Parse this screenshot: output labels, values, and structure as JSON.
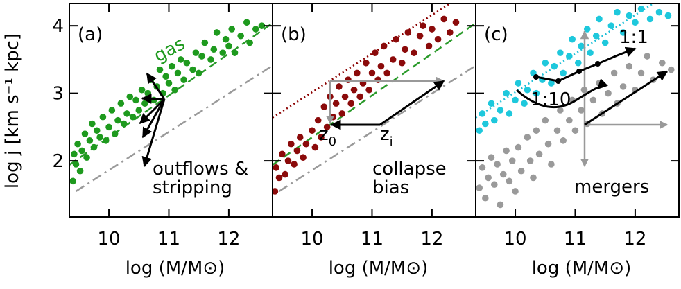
{
  "chart_data": [
    {
      "type": "scatter",
      "panel_label": "(a)",
      "ylabel": "log j [km s⁻¹ kpc]",
      "xlabel": "log (M/M⊙)",
      "xlim": [
        9.34,
        12.73
      ],
      "ylim": [
        1.17,
        4.33
      ],
      "xticks": [
        10,
        11,
        12
      ],
      "yticks": [
        2,
        3,
        4
      ],
      "ytick_labels": true,
      "annotations": [
        "gas",
        "outflows &",
        "stripping"
      ],
      "lines": [
        {
          "color": "#2a9a2a",
          "style": "dashed",
          "x": [
            9.34,
            12.73
          ],
          "values": [
            1.94,
            4.04
          ]
        },
        {
          "color": "#9a9a9a",
          "style": "dashdot",
          "x": [
            9.45,
            12.73
          ],
          "values": [
            1.55,
            3.41
          ]
        }
      ],
      "series": [
        {
          "color": "#1e9a1e",
          "x": [
            9.4,
            9.42,
            9.45,
            9.48,
            9.52,
            9.55,
            9.6,
            9.63,
            9.68,
            9.72,
            9.75,
            9.8,
            9.85,
            9.9,
            9.95,
            10.0,
            10.05,
            10.1,
            10.15,
            10.2,
            10.25,
            10.3,
            10.35,
            10.4,
            10.45,
            10.5,
            10.55,
            10.6,
            10.65,
            10.7,
            10.75,
            10.8,
            10.85,
            10.9,
            10.95,
            11.0,
            11.05,
            11.1,
            11.15,
            11.2,
            11.25,
            11.3,
            11.4,
            11.45,
            11.5,
            11.55,
            11.6,
            11.7,
            11.75,
            11.8,
            11.9,
            11.95,
            12.0,
            12.05,
            12.1,
            12.2,
            12.3,
            12.35,
            12.45,
            12.55
          ],
          "values": [
            1.7,
            2.1,
            1.95,
            2.25,
            1.85,
            2.15,
            2.4,
            2.05,
            2.3,
            2.55,
            2.2,
            2.45,
            2.35,
            2.65,
            2.3,
            2.5,
            2.75,
            2.4,
            2.6,
            2.85,
            2.55,
            2.7,
            2.95,
            2.65,
            2.9,
            2.75,
            3.05,
            2.85,
            3.0,
            3.2,
            2.9,
            3.1,
            3.35,
            3.0,
            3.25,
            3.15,
            3.4,
            3.05,
            3.3,
            3.5,
            3.2,
            3.45,
            3.35,
            3.6,
            3.3,
            3.55,
            3.75,
            3.5,
            3.65,
            3.9,
            3.6,
            3.8,
            3.7,
            3.95,
            3.6,
            3.85,
            4.05,
            3.75,
            3.95,
            4.0
          ]
        }
      ]
    },
    {
      "type": "scatter",
      "panel_label": "(b)",
      "xlabel": "log (M/M⊙)",
      "xlim": [
        9.34,
        12.73
      ],
      "ylim": [
        1.17,
        4.33
      ],
      "xticks": [
        10,
        11,
        12
      ],
      "yticks": [
        2,
        3,
        4
      ],
      "ytick_labels": false,
      "annotations": [
        "collapse",
        "bias"
      ],
      "subscripted": [
        {
          "text": "z",
          "sub": "0"
        },
        {
          "text": "z",
          "sub": "i"
        }
      ],
      "lines": [
        {
          "color": "#2a9a2a",
          "style": "dashed",
          "x": [
            9.34,
            12.73
          ],
          "values": [
            1.94,
            4.04
          ]
        },
        {
          "color": "#9a9a9a",
          "style": "dashdot",
          "x": [
            9.45,
            12.73
          ],
          "values": [
            1.55,
            3.41
          ]
        },
        {
          "color": "#8b0000",
          "style": "dotted",
          "x": [
            9.34,
            12.3
          ],
          "values": [
            2.64,
            4.33
          ]
        }
      ],
      "series": [
        {
          "color": "#8b0a0a",
          "x": [
            9.38,
            9.4,
            9.45,
            9.5,
            9.55,
            9.6,
            9.65,
            9.7,
            9.75,
            9.8,
            9.85,
            9.9,
            10.0,
            10.05,
            10.1,
            10.15,
            10.2,
            10.25,
            10.3,
            10.35,
            10.4,
            10.45,
            10.5,
            10.55,
            10.6,
            10.65,
            10.7,
            10.75,
            10.8,
            10.85,
            10.9,
            10.95,
            11.0,
            11.05,
            11.1,
            11.15,
            11.2,
            11.25,
            11.35,
            11.4,
            11.5,
            11.55,
            11.6,
            11.7,
            11.8,
            11.85,
            11.95,
            12.0,
            12.1,
            12.2,
            12.3,
            12.4
          ],
          "values": [
            1.55,
            1.9,
            1.75,
            2.1,
            1.8,
            2.0,
            2.25,
            1.95,
            2.15,
            2.35,
            2.05,
            2.25,
            2.45,
            2.2,
            2.6,
            2.35,
            2.8,
            2.5,
            2.95,
            2.65,
            2.85,
            3.1,
            2.7,
            2.95,
            3.2,
            2.85,
            3.05,
            3.3,
            2.95,
            3.15,
            3.45,
            3.05,
            3.3,
            3.6,
            3.2,
            3.4,
            3.7,
            3.3,
            3.5,
            3.8,
            3.45,
            3.65,
            3.9,
            3.6,
            3.85,
            4.0,
            3.7,
            3.95,
            3.8,
            4.1,
            3.9,
            4.05
          ]
        }
      ]
    },
    {
      "type": "scatter",
      "panel_label": "(c)",
      "xlabel": "log (M/M⊙)",
      "xlim": [
        9.34,
        12.73
      ],
      "ylim": [
        1.17,
        4.33
      ],
      "xticks": [
        10,
        11,
        12
      ],
      "yticks": [
        2,
        3,
        4
      ],
      "ytick_labels": false,
      "annotations": [
        "1:1",
        "1:10",
        "mergers"
      ],
      "lines": [
        {
          "color": "#20c0d8",
          "style": "dotted",
          "x": [
            9.34,
            12.3
          ],
          "values": [
            2.64,
            4.33
          ]
        }
      ],
      "series": [
        {
          "color": "#9a9a9a",
          "x": [
            9.4,
            9.45,
            9.5,
            9.55,
            9.6,
            9.65,
            9.7,
            9.75,
            9.8,
            9.85,
            9.9,
            9.95,
            10.0,
            10.05,
            10.1,
            10.2,
            10.25,
            10.3,
            10.35,
            10.4,
            10.5,
            10.55,
            10.6,
            10.7,
            10.75,
            10.8,
            10.9,
            10.95,
            11.0,
            11.1,
            11.15,
            11.2,
            11.3,
            11.4,
            11.45,
            11.55,
            11.65,
            11.7,
            11.8,
            11.9,
            12.0,
            12.1,
            12.2,
            12.3,
            12.45,
            12.6
          ],
          "values": [
            1.6,
            1.9,
            1.45,
            1.75,
            2.05,
            1.65,
            1.95,
            1.35,
            1.8,
            2.15,
            1.7,
            2.0,
            1.55,
            2.2,
            1.85,
            2.35,
            2.0,
            1.75,
            2.45,
            2.1,
            2.6,
            2.25,
            1.95,
            2.45,
            2.75,
            2.3,
            2.6,
            2.9,
            2.45,
            2.75,
            3.05,
            2.55,
            2.9,
            3.15,
            2.7,
            3.0,
            3.3,
            2.85,
            3.1,
            3.4,
            3.05,
            3.3,
            3.55,
            3.2,
            3.45,
            3.35
          ]
        },
        {
          "color": "#1ec8dc",
          "x": [
            9.4,
            9.45,
            9.5,
            9.6,
            9.65,
            9.75,
            9.85,
            9.9,
            10.0,
            10.05,
            10.15,
            10.2,
            10.3,
            10.35,
            10.45,
            10.5,
            10.6,
            10.65,
            10.75,
            10.8,
            10.9,
            10.95,
            11.05,
            11.1,
            11.2,
            11.25,
            11.35,
            11.4,
            11.5,
            11.6,
            11.7,
            11.8,
            11.9,
            12.0,
            12.1,
            12.25,
            12.4,
            12.55
          ],
          "values": [
            2.45,
            2.7,
            2.55,
            2.85,
            2.6,
            2.75,
            3.0,
            2.7,
            2.9,
            3.15,
            2.85,
            3.05,
            3.3,
            3.0,
            3.2,
            3.45,
            3.15,
            3.4,
            3.6,
            3.3,
            3.55,
            3.8,
            3.45,
            3.7,
            3.95,
            3.6,
            3.85,
            4.1,
            3.75,
            4.0,
            4.2,
            3.9,
            4.15,
            4.05,
            4.25,
            4.1,
            4.2,
            4.15
          ]
        }
      ]
    }
  ]
}
